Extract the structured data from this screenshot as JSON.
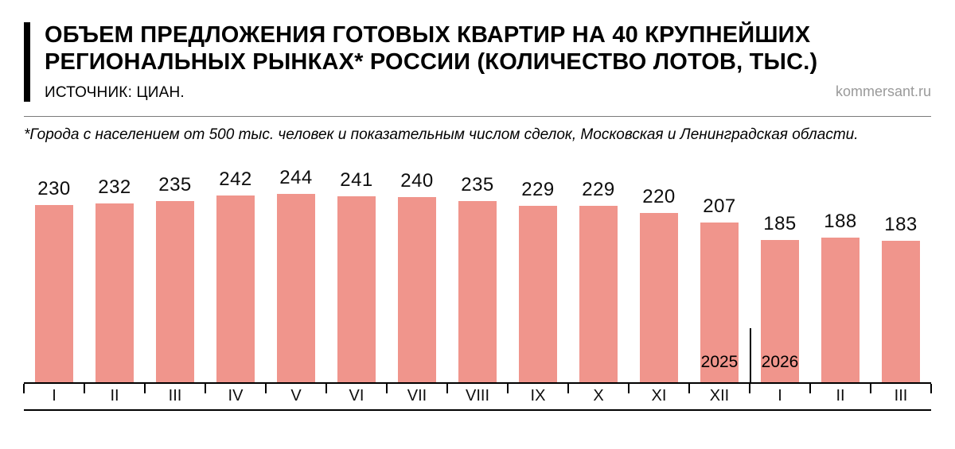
{
  "header": {
    "title_line1": "ОБЪЕМ ПРЕДЛОЖЕНИЯ ГОТОВЫХ КВАРТИР НА 40 КРУПНЕЙШИХ",
    "title_line2": "РЕГИОНАЛЬНЫХ РЫНКАХ* РОССИИ (КОЛИЧЕСТВО ЛОТОВ, ТЫС.)",
    "source": "ИСТОЧНИК: ЦИАН.",
    "brand": "kommersant.ru"
  },
  "footnote": "*Города с населением от 500 тыс. человек и показательным числом сделок, Московская и Ленинградская области.",
  "chart_data": {
    "type": "bar",
    "title": "Объем предложения готовых квартир на 40 крупнейших региональных рынках России (количество лотов, тыс.)",
    "xlabel": "",
    "ylabel": "Количество лотов, тыс.",
    "categories": [
      "I",
      "II",
      "III",
      "IV",
      "V",
      "VI",
      "VII",
      "VIII",
      "IX",
      "X",
      "XI",
      "XII",
      "I",
      "II",
      "III"
    ],
    "values": [
      230,
      232,
      235,
      242,
      244,
      241,
      240,
      235,
      229,
      229,
      220,
      207,
      185,
      188,
      183
    ],
    "year_markers": [
      {
        "index": 11,
        "label": "2025"
      },
      {
        "index": 12,
        "label": "2026"
      }
    ],
    "separator_after_index": 11,
    "bar_color": "#F0958C",
    "ylim": [
      0,
      260
    ],
    "grid": false,
    "legend": false
  }
}
